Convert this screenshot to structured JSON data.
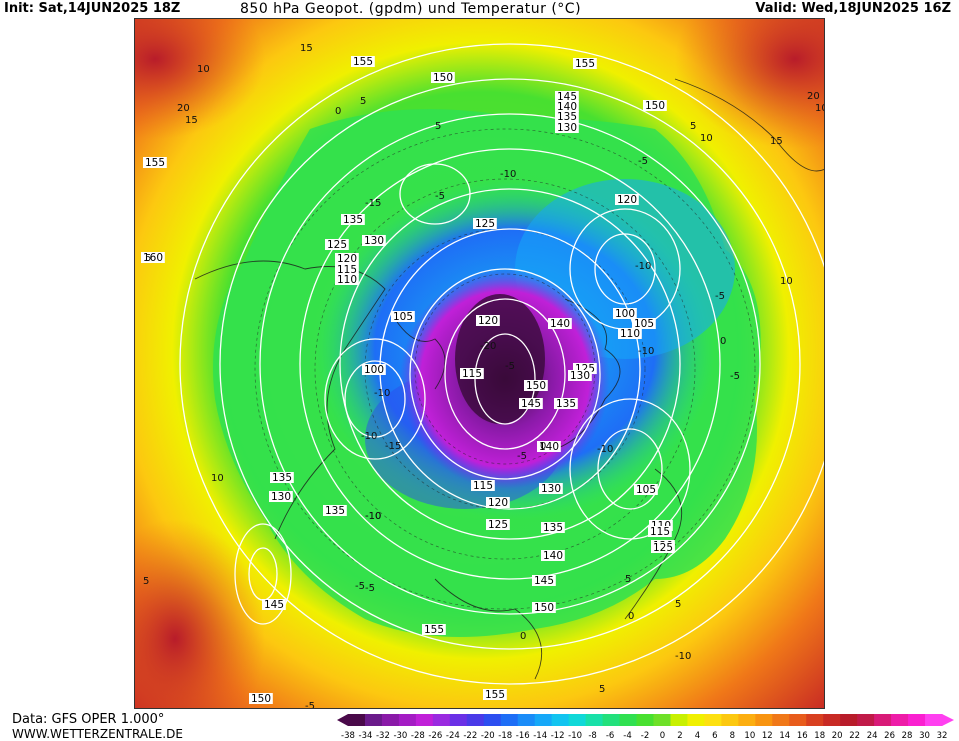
{
  "header": {
    "init": "Init: Sat,14JUN2025 18Z",
    "title": "850 hPa Geopot. (gpdm) und Temperatur (°C)",
    "valid": "Valid: Wed,18JUN2025 16Z"
  },
  "footer": {
    "data_source": "Data: GFS OPER 1.000°",
    "website": "WWW.WETTERZENTRALE.DE"
  },
  "legend": {
    "ticks": [
      "-38",
      "-34",
      "-32",
      "-30",
      "-28",
      "-26",
      "-24",
      "-22",
      "-20",
      "-18",
      "-16",
      "-14",
      "-12",
      "-10",
      "-8",
      "-6",
      "-4",
      "-2",
      "0",
      "2",
      "4",
      "6",
      "8",
      "10",
      "12",
      "14",
      "16",
      "18",
      "20",
      "22",
      "24",
      "26",
      "28",
      "30",
      "32"
    ],
    "colors": [
      "#4a0a4a",
      "#6a1a8a",
      "#8a1aa8",
      "#a41cc4",
      "#c020d8",
      "#9a2ae0",
      "#6a30e6",
      "#4a3ae8",
      "#2c4ef0",
      "#1e6ef6",
      "#1a8cf8",
      "#16a8f8",
      "#12c4f0",
      "#10d8d8",
      "#18e0a8",
      "#22e07c",
      "#30e050",
      "#48e030",
      "#6ee028",
      "#c8f000",
      "#f0f000",
      "#fde010",
      "#fcc810",
      "#fcae10",
      "#f89410",
      "#f07818",
      "#e85c1c",
      "#d84020",
      "#c82a24",
      "#b81c2a",
      "#c01a48",
      "#d81a78",
      "#ee1ca8",
      "#fa20d0",
      "#ff40f0"
    ]
  },
  "map": {
    "geopotential_labels": [
      {
        "text": "155"
      },
      {
        "text": "150"
      },
      {
        "text": "155"
      },
      {
        "text": "150"
      },
      {
        "text": "145"
      },
      {
        "text": "140"
      },
      {
        "text": "135"
      },
      {
        "text": "130"
      },
      {
        "text": "155"
      },
      {
        "text": "135"
      },
      {
        "text": "130"
      },
      {
        "text": "125"
      },
      {
        "text": "120"
      },
      {
        "text": "115"
      },
      {
        "text": "110"
      },
      {
        "text": "160"
      },
      {
        "text": "125"
      },
      {
        "text": "120"
      },
      {
        "text": "105"
      },
      {
        "text": "120"
      },
      {
        "text": "140"
      },
      {
        "text": "100"
      },
      {
        "text": "105"
      },
      {
        "text": "110"
      },
      {
        "text": "125"
      },
      {
        "text": "130"
      },
      {
        "text": "100"
      },
      {
        "text": "115"
      },
      {
        "text": "150"
      },
      {
        "text": "145"
      },
      {
        "text": "135"
      },
      {
        "text": "140"
      },
      {
        "text": "105"
      },
      {
        "text": "115"
      },
      {
        "text": "120"
      },
      {
        "text": "130"
      },
      {
        "text": "125"
      },
      {
        "text": "135"
      },
      {
        "text": "140"
      },
      {
        "text": "145"
      },
      {
        "text": "150"
      },
      {
        "text": "155"
      },
      {
        "text": "135"
      },
      {
        "text": "130"
      },
      {
        "text": "135"
      },
      {
        "text": "145"
      },
      {
        "text": "110"
      },
      {
        "text": "115"
      },
      {
        "text": "120"
      },
      {
        "text": "125"
      },
      {
        "text": "150"
      },
      {
        "text": "155"
      }
    ],
    "temperature_labels": [
      "15",
      "10",
      "20",
      "15",
      "0",
      "-5",
      "-10",
      "-15",
      "5",
      "-5",
      "-10",
      "5",
      "-5",
      "-10",
      "-10",
      "-15",
      "-20",
      "-10",
      "-5",
      "0",
      "5",
      "10",
      "15",
      "20",
      "10",
      "5",
      "-5",
      "0",
      "-10",
      "-5",
      "0",
      "5",
      "10",
      "5",
      "5",
      "-5",
      "-10",
      "10",
      "-5",
      "-10",
      "0",
      "5",
      "-5",
      "-10"
    ]
  }
}
